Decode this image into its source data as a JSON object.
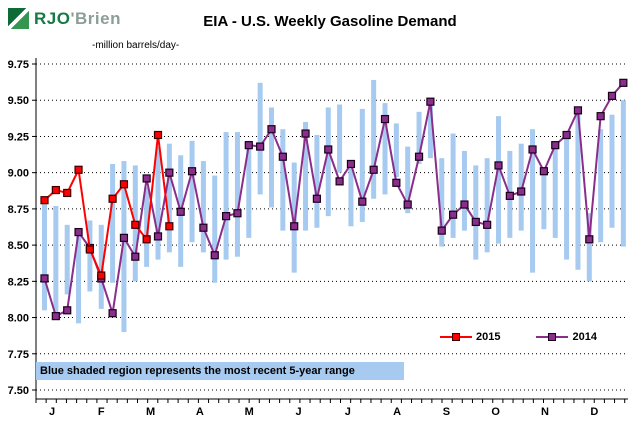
{
  "header": {
    "logo": {
      "brand_primary": "RJO",
      "brand_secondary": "'Brien"
    },
    "title": "EIA - U.S. Weekly Gasoline Demand"
  },
  "chart_data": {
    "type": "line",
    "title": "EIA - U.S. Weekly Gasoline Demand",
    "ylabel": "-million barrels/day-",
    "xlabel": "",
    "ylim": [
      7.5,
      9.75
    ],
    "ytick_step": 0.25,
    "month_labels": [
      "J",
      "F",
      "M",
      "A",
      "M",
      "J",
      "J",
      "A",
      "S",
      "O",
      "N",
      "D"
    ],
    "weeks_per_year": 52,
    "grid": "horizontal-dotted",
    "legend_position": "inside-bottom-right",
    "range_note": "Blue shaded region represents the most recent 5-year range",
    "colors": {
      "series_2015": "#ff0000",
      "series_2015_marker_border": "#3a0000",
      "series_2014": "#8b2e8b",
      "series_2014_marker_border": "#1a001a",
      "range_bar": "#a6caf0",
      "grid": "#000000",
      "axis": "#000000"
    },
    "series": [
      {
        "name": "2015",
        "color": "#ff0000",
        "marker_border": "#3a0000",
        "values": [
          8.81,
          8.88,
          8.86,
          9.02,
          8.47,
          8.29,
          8.82,
          8.92,
          8.64,
          8.54,
          9.26,
          8.63
        ]
      },
      {
        "name": "2014",
        "color": "#8b2e8b",
        "marker_border": "#1a001a",
        "values": [
          8.27,
          8.01,
          8.05,
          8.59,
          8.48,
          8.27,
          8.03,
          8.55,
          8.42,
          8.96,
          8.56,
          9.0,
          8.73,
          9.01,
          8.62,
          8.43,
          8.7,
          8.72,
          9.19,
          9.18,
          9.3,
          9.11,
          8.63,
          9.27,
          8.82,
          9.16,
          8.94,
          9.06,
          8.8,
          9.02,
          9.37,
          8.93,
          8.78,
          9.11,
          9.49,
          8.6,
          8.71,
          8.78,
          8.66,
          8.64,
          9.05,
          8.84,
          8.87,
          9.16,
          9.01,
          9.19,
          9.26,
          9.43,
          8.54,
          9.39,
          9.53,
          9.62
        ]
      }
    ],
    "five_year_range": {
      "name": "5-year range",
      "low": [
        8.05,
        8.0,
        8.16,
        7.96,
        8.18,
        8.06,
        8.24,
        7.9,
        8.25,
        8.35,
        8.4,
        8.45,
        8.35,
        8.52,
        8.45,
        8.24,
        8.4,
        8.42,
        8.55,
        8.85,
        8.76,
        8.6,
        8.31,
        8.6,
        8.62,
        8.7,
        9.0,
        8.63,
        8.66,
        8.82,
        8.85,
        8.97,
        8.72,
        9.06,
        9.1,
        8.49,
        8.55,
        8.6,
        8.4,
        8.45,
        8.51,
        8.55,
        8.6,
        8.31,
        8.61,
        8.55,
        8.4,
        8.33,
        8.25,
        8.52,
        8.62,
        8.49
      ],
      "high": [
        8.78,
        8.77,
        8.64,
        8.6,
        8.67,
        8.64,
        9.06,
        9.08,
        9.05,
        8.9,
        9.18,
        9.2,
        9.12,
        9.22,
        9.08,
        8.98,
        9.28,
        9.28,
        9.22,
        9.62,
        9.45,
        9.3,
        9.07,
        9.35,
        9.26,
        9.45,
        9.47,
        9.07,
        9.44,
        9.64,
        9.48,
        9.34,
        9.18,
        9.42,
        9.5,
        9.1,
        9.27,
        9.15,
        9.05,
        9.1,
        9.39,
        9.15,
        9.2,
        9.3,
        9.01,
        9.2,
        9.26,
        9.43,
        8.72,
        9.3,
        9.4,
        9.5
      ]
    }
  }
}
